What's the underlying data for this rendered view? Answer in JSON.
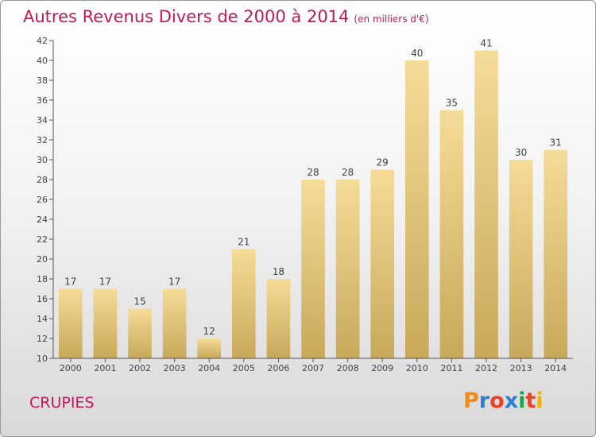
{
  "header": {
    "title": "Autres Revenus Divers de 2000 à 2014",
    "unit": "(en milliers d'€)"
  },
  "footer": {
    "commune": "CRUPIES",
    "logo": {
      "letters": [
        "P",
        "r",
        "o",
        "x",
        "i",
        "t",
        "i"
      ],
      "colors": [
        "#f08a1c",
        "#2e7dd1",
        "#e8432b",
        "#2e7dd1",
        "#1fa64a",
        "#e8432b",
        "#f0b400"
      ]
    }
  },
  "chart_data": {
    "type": "bar",
    "title": "Autres Revenus Divers de 2000 à 2014",
    "subtitle": "(en milliers d'€)",
    "categories": [
      "2000",
      "2001",
      "2002",
      "2003",
      "2004",
      "2005",
      "2006",
      "2007",
      "2008",
      "2009",
      "2010",
      "2011",
      "2012",
      "2013",
      "2014"
    ],
    "values": [
      17,
      17,
      15,
      17,
      12,
      21,
      18,
      28,
      28,
      29,
      40,
      35,
      41,
      30,
      31
    ],
    "ylim": [
      10,
      42
    ],
    "yticks": [
      10,
      12,
      14,
      16,
      18,
      20,
      22,
      24,
      26,
      28,
      30,
      32,
      34,
      36,
      38,
      40,
      42
    ],
    "grid": false,
    "legend": "none",
    "bar_color_top": "#f5dc98",
    "bar_color_bottom": "#c8a95a"
  }
}
